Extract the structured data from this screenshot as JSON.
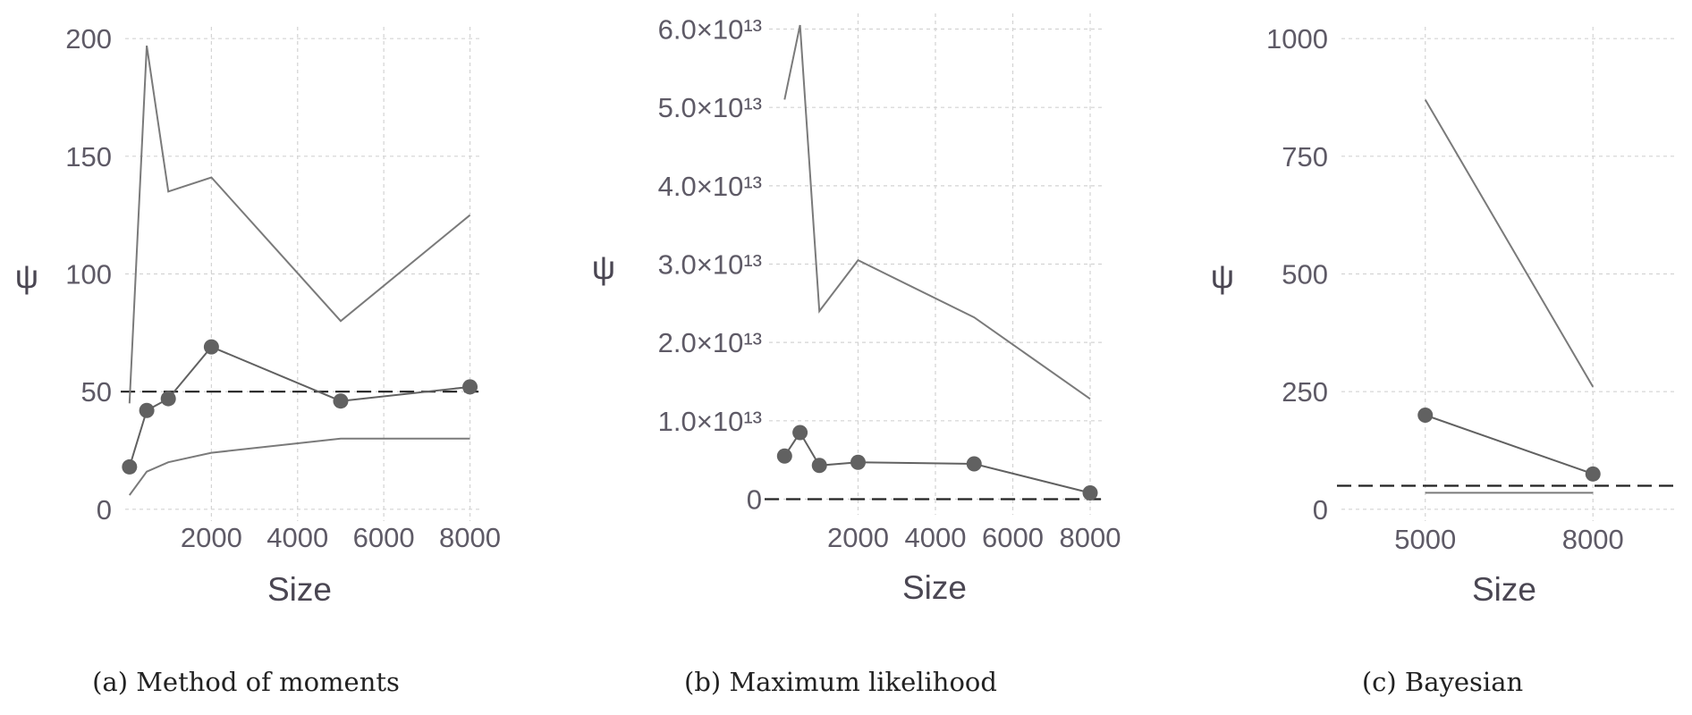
{
  "chart_data": [
    {
      "type": "line",
      "caption": "(a) Method of moments",
      "xlabel": "Size",
      "ylabel": "ψ",
      "xlim": [
        0,
        8300
      ],
      "ylim": [
        -5,
        205
      ],
      "xticks": [
        2000,
        4000,
        6000,
        8000
      ],
      "xtick_labels": [
        "2000",
        "4000",
        "6000",
        "8000"
      ],
      "yticks": [
        0,
        50,
        100,
        150,
        200
      ],
      "ytick_labels": [
        "0",
        "50",
        "100",
        "150",
        "200"
      ],
      "series": [
        {
          "role": "upper",
          "x": [
            100,
            500,
            1000,
            2000,
            5000,
            8000
          ],
          "y": [
            45,
            197,
            135,
            141,
            80,
            125
          ]
        },
        {
          "role": "estimate",
          "x": [
            100,
            500,
            1000,
            2000,
            5000,
            8000
          ],
          "y": [
            18,
            42,
            47,
            69,
            46,
            52
          ]
        },
        {
          "role": "lower",
          "x": [
            100,
            500,
            1000,
            2000,
            5000,
            8000
          ],
          "y": [
            6,
            16,
            20,
            24,
            30,
            30
          ]
        }
      ],
      "reference_line": 50
    },
    {
      "type": "line",
      "caption": "(b) Maximum likelihood",
      "xlabel": "Size",
      "ylabel": "ψ",
      "xlim": [
        -300,
        8300
      ],
      "ylim": [
        -2000000000000.0,
        62000000000000.0
      ],
      "xticks": [
        2000,
        4000,
        6000,
        8000
      ],
      "xtick_labels": [
        "2000",
        "4000",
        "6000",
        "8000"
      ],
      "yticks": [
        0,
        10000000000000.0,
        20000000000000.0,
        30000000000000.0,
        40000000000000.0,
        50000000000000.0,
        60000000000000.0
      ],
      "ytick_labels": [
        "0",
        "1.0×10¹³",
        "2.0×10¹³",
        "3.0×10¹³",
        "4.0×10¹³",
        "5.0×10¹³",
        "6.0×10¹³"
      ],
      "series": [
        {
          "role": "upper",
          "x": [
            100,
            500,
            1000,
            2000,
            5000,
            8000
          ],
          "y": [
            51000000000000.0,
            60500000000000.0,
            24000000000000.0,
            30500000000000.0,
            23200000000000.0,
            12800000000000.0
          ]
        },
        {
          "role": "estimate",
          "x": [
            100,
            500,
            1000,
            2000,
            5000,
            8000
          ],
          "y": [
            5500000000000.0,
            8500000000000.0,
            4300000000000.0,
            4700000000000.0,
            4500000000000.0,
            800000000000.0
          ]
        }
      ],
      "reference_line": 0
    },
    {
      "type": "line",
      "caption": "(c) Bayesian",
      "xlabel": "Size",
      "ylabel": "ψ",
      "xlim": [
        3500,
        9500
      ],
      "ylim": [
        -25,
        1025
      ],
      "xticks": [
        5000,
        8000
      ],
      "xtick_labels": [
        "5000",
        "8000"
      ],
      "yticks": [
        0,
        250,
        500,
        750,
        1000
      ],
      "ytick_labels": [
        "0",
        "250",
        "500",
        "750",
        "1000"
      ],
      "series": [
        {
          "role": "upper",
          "x": [
            5000,
            8000
          ],
          "y": [
            870,
            260
          ]
        },
        {
          "role": "estimate",
          "x": [
            5000,
            8000
          ],
          "y": [
            200,
            75
          ]
        },
        {
          "role": "lower",
          "x": [
            5000,
            8000
          ],
          "y": [
            35,
            35
          ]
        }
      ],
      "reference_line": 50
    }
  ]
}
